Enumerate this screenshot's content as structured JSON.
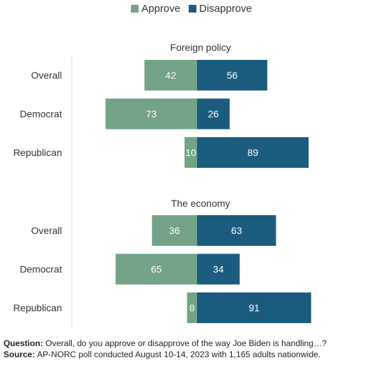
{
  "chart_data": {
    "type": "bar",
    "orientation": "horizontal-diverging",
    "legend": [
      {
        "name": "Approve",
        "color": "#73a386"
      },
      {
        "name": "Disapprove",
        "color": "#1b5b7d"
      }
    ],
    "panels": [
      {
        "title": "Foreign policy",
        "categories": [
          "Overall",
          "Democrat",
          "Republican"
        ],
        "series": [
          {
            "name": "Approve",
            "values": [
              42,
              73,
              10
            ]
          },
          {
            "name": "Disapprove",
            "values": [
              56,
              26,
              89
            ]
          }
        ]
      },
      {
        "title": "The economy",
        "categories": [
          "Overall",
          "Democrat",
          "Republican"
        ],
        "series": [
          {
            "name": "Approve",
            "values": [
              36,
              65,
              8
            ]
          },
          {
            "name": "Disapprove",
            "values": [
              63,
              34,
              91
            ]
          }
        ]
      }
    ]
  },
  "footnote": {
    "question_label": "Question:",
    "question_text": " Overall, do you approve or disapprove of the way Joe Biden is handling…?",
    "source_label": "Source:",
    "source_text": " AP-NORC poll conducted August 10-14, 2023 with 1,165 adults nationwide."
  }
}
